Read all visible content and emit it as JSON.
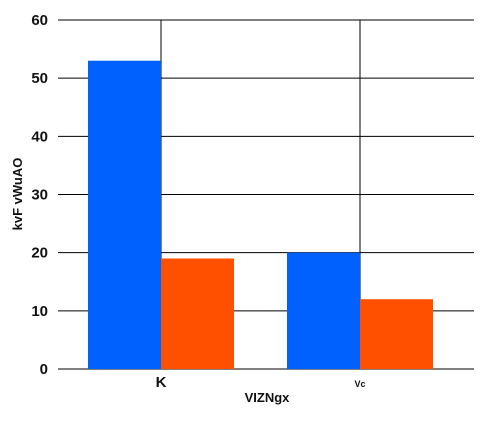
{
  "chart_data": {
    "type": "bar",
    "title": "",
    "xlabel": "VIZNgx",
    "ylabel": "kvF vWuAO",
    "categories": [
      "K",
      "Vc"
    ],
    "series": [
      {
        "values": [
          53,
          20
        ],
        "color": "#0061ff"
      },
      {
        "values": [
          19,
          12
        ],
        "color": "#ff5000"
      }
    ],
    "ylim": [
      0,
      60
    ],
    "yticks": [
      0,
      10,
      20,
      30,
      40,
      50,
      60
    ],
    "grid": true,
    "legend": "none"
  }
}
